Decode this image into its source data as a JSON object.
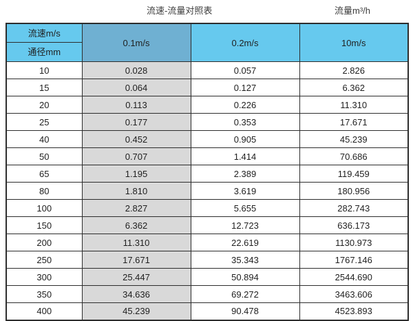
{
  "titles": {
    "left": "流速-流量对照表",
    "right": "流量m³/h"
  },
  "header": {
    "corner_top": "流速m/s",
    "corner_bottom": "通径mm",
    "columns": [
      "0.1m/s",
      "0.2m/s",
      "10m/s"
    ]
  },
  "colors": {
    "header_light_blue": "#66c9ee",
    "header_dark_blue": "#6fb0d2",
    "first_value_column_gray": "#d9d9d9",
    "border": "#2d2d2d",
    "text": "#1f1f1f"
  },
  "chart_data": {
    "type": "table",
    "title": "流速-流量对照表",
    "unit_label": "流量m³/h",
    "row_axis_label": "通径mm",
    "col_axis_label": "流速m/s",
    "columns": [
      "0.1m/s",
      "0.2m/s",
      "10m/s"
    ],
    "rows": [
      {
        "diameter": "10",
        "values": [
          "0.028",
          "0.057",
          "2.826"
        ]
      },
      {
        "diameter": "15",
        "values": [
          "0.064",
          "0.127",
          "6.362"
        ]
      },
      {
        "diameter": "20",
        "values": [
          "0.113",
          "0.226",
          "11.310"
        ]
      },
      {
        "diameter": "25",
        "values": [
          "0.177",
          "0.353",
          "17.671"
        ]
      },
      {
        "diameter": "40",
        "values": [
          "0.452",
          "0.905",
          "45.239"
        ]
      },
      {
        "diameter": "50",
        "values": [
          "0.707",
          "1.414",
          "70.686"
        ]
      },
      {
        "diameter": "65",
        "values": [
          "1.195",
          "2.389",
          "119.459"
        ]
      },
      {
        "diameter": "80",
        "values": [
          "1.810",
          "3.619",
          "180.956"
        ]
      },
      {
        "diameter": "100",
        "values": [
          "2.827",
          "5.655",
          "282.743"
        ]
      },
      {
        "diameter": "150",
        "values": [
          "6.362",
          "12.723",
          "636.173"
        ]
      },
      {
        "diameter": "200",
        "values": [
          "11.310",
          "22.619",
          "1130.973"
        ]
      },
      {
        "diameter": "250",
        "values": [
          "17.671",
          "35.343",
          "1767.146"
        ]
      },
      {
        "diameter": "300",
        "values": [
          "25.447",
          "50.894",
          "2544.690"
        ]
      },
      {
        "diameter": "350",
        "values": [
          "34.636",
          "69.272",
          "3463.606"
        ]
      },
      {
        "diameter": "400",
        "values": [
          "45.239",
          "90.478",
          "4523.893"
        ]
      }
    ]
  }
}
